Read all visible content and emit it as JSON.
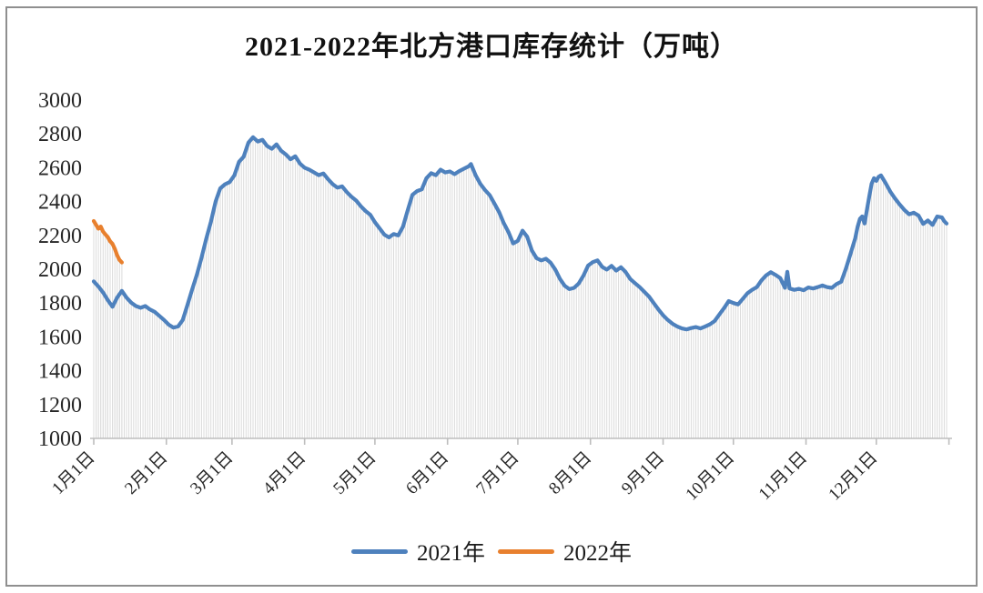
{
  "title": "2021-2022年北方港口库存统计（万吨）",
  "legend": {
    "items": [
      {
        "label": "2021年",
        "color": "#4e81bd"
      },
      {
        "label": "2022年",
        "color": "#e8802e"
      }
    ]
  },
  "colors": {
    "series_2021": "#4e81bd",
    "series_2022": "#e8802e",
    "drop_line": "#dbdbdb",
    "axis_line": "#bdbdbd",
    "tick_text": "#262626",
    "frame_border": "#8f8f8f"
  },
  "chart_data": {
    "type": "line",
    "title": "2021-2022年北方港口库存统计（万吨）",
    "xlabel": "",
    "ylabel": "",
    "y_axis": {
      "min": 1000,
      "max": 3000,
      "step": 200,
      "tick_labels": [
        "3000",
        "2800",
        "2600",
        "2400",
        "2200",
        "2000",
        "1800",
        "1600",
        "1400",
        "1200",
        "1000"
      ]
    },
    "x_axis": {
      "tick_labels": [
        "1月1日",
        "2月1日",
        "3月1日",
        "4月1日",
        "5月1日",
        "6月1日",
        "7月1日",
        "8月1日",
        "9月1日",
        "10月1日",
        "11月1日",
        "12月1日"
      ],
      "tick_days": [
        1,
        32,
        60,
        91,
        121,
        152,
        182,
        213,
        244,
        274,
        305,
        335
      ],
      "days_total": 365,
      "grid": false,
      "drop_lines": true
    },
    "legend_position": "bottom",
    "series": [
      {
        "name": "2021年",
        "color": "#4e81bd",
        "points": [
          [
            1,
            1928
          ],
          [
            3,
            1898
          ],
          [
            5,
            1862
          ],
          [
            7,
            1818
          ],
          [
            9,
            1778
          ],
          [
            11,
            1832
          ],
          [
            13,
            1872
          ],
          [
            15,
            1832
          ],
          [
            17,
            1802
          ],
          [
            19,
            1782
          ],
          [
            21,
            1772
          ],
          [
            23,
            1782
          ],
          [
            25,
            1762
          ],
          [
            27,
            1748
          ],
          [
            29,
            1724
          ],
          [
            31,
            1700
          ],
          [
            33,
            1672
          ],
          [
            35,
            1655
          ],
          [
            37,
            1662
          ],
          [
            39,
            1700
          ],
          [
            41,
            1790
          ],
          [
            43,
            1880
          ],
          [
            45,
            1968
          ],
          [
            47,
            2068
          ],
          [
            49,
            2180
          ],
          [
            51,
            2280
          ],
          [
            53,
            2400
          ],
          [
            55,
            2478
          ],
          [
            57,
            2502
          ],
          [
            59,
            2515
          ],
          [
            61,
            2555
          ],
          [
            63,
            2635
          ],
          [
            65,
            2665
          ],
          [
            67,
            2748
          ],
          [
            69,
            2780
          ],
          [
            71,
            2755
          ],
          [
            73,
            2765
          ],
          [
            75,
            2728
          ],
          [
            77,
            2712
          ],
          [
            79,
            2738
          ],
          [
            81,
            2700
          ],
          [
            83,
            2678
          ],
          [
            85,
            2650
          ],
          [
            87,
            2668
          ],
          [
            89,
            2625
          ],
          [
            91,
            2600
          ],
          [
            93,
            2588
          ],
          [
            95,
            2572
          ],
          [
            97,
            2556
          ],
          [
            99,
            2566
          ],
          [
            101,
            2532
          ],
          [
            103,
            2502
          ],
          [
            105,
            2482
          ],
          [
            107,
            2490
          ],
          [
            109,
            2456
          ],
          [
            111,
            2428
          ],
          [
            113,
            2406
          ],
          [
            115,
            2372
          ],
          [
            117,
            2344
          ],
          [
            119,
            2322
          ],
          [
            121,
            2278
          ],
          [
            123,
            2242
          ],
          [
            125,
            2205
          ],
          [
            127,
            2188
          ],
          [
            129,
            2208
          ],
          [
            131,
            2200
          ],
          [
            133,
            2252
          ],
          [
            135,
            2348
          ],
          [
            137,
            2440
          ],
          [
            139,
            2462
          ],
          [
            141,
            2472
          ],
          [
            143,
            2538
          ],
          [
            145,
            2568
          ],
          [
            147,
            2556
          ],
          [
            149,
            2588
          ],
          [
            151,
            2572
          ],
          [
            153,
            2578
          ],
          [
            155,
            2562
          ],
          [
            157,
            2580
          ],
          [
            159,
            2594
          ],
          [
            161,
            2608
          ],
          [
            162,
            2622
          ],
          [
            164,
            2555
          ],
          [
            166,
            2505
          ],
          [
            168,
            2468
          ],
          [
            170,
            2438
          ],
          [
            172,
            2388
          ],
          [
            174,
            2338
          ],
          [
            176,
            2272
          ],
          [
            178,
            2220
          ],
          [
            180,
            2152
          ],
          [
            182,
            2168
          ],
          [
            184,
            2228
          ],
          [
            186,
            2192
          ],
          [
            188,
            2110
          ],
          [
            190,
            2065
          ],
          [
            192,
            2052
          ],
          [
            194,
            2062
          ],
          [
            196,
            2038
          ],
          [
            198,
            1998
          ],
          [
            200,
            1942
          ],
          [
            202,
            1902
          ],
          [
            204,
            1882
          ],
          [
            206,
            1890
          ],
          [
            208,
            1916
          ],
          [
            210,
            1962
          ],
          [
            212,
            2022
          ],
          [
            214,
            2042
          ],
          [
            216,
            2052
          ],
          [
            218,
            2014
          ],
          [
            220,
            1998
          ],
          [
            222,
            2020
          ],
          [
            224,
            1992
          ],
          [
            226,
            2012
          ],
          [
            228,
            1984
          ],
          [
            230,
            1942
          ],
          [
            232,
            1918
          ],
          [
            234,
            1894
          ],
          [
            236,
            1866
          ],
          [
            238,
            1838
          ],
          [
            240,
            1800
          ],
          [
            242,
            1762
          ],
          [
            244,
            1728
          ],
          [
            246,
            1700
          ],
          [
            248,
            1678
          ],
          [
            250,
            1662
          ],
          [
            252,
            1650
          ],
          [
            254,
            1644
          ],
          [
            256,
            1652
          ],
          [
            258,
            1658
          ],
          [
            260,
            1650
          ],
          [
            262,
            1662
          ],
          [
            264,
            1674
          ],
          [
            266,
            1694
          ],
          [
            268,
            1732
          ],
          [
            270,
            1770
          ],
          [
            272,
            1812
          ],
          [
            274,
            1800
          ],
          [
            276,
            1792
          ],
          [
            278,
            1824
          ],
          [
            280,
            1858
          ],
          [
            282,
            1878
          ],
          [
            284,
            1894
          ],
          [
            286,
            1934
          ],
          [
            288,
            1964
          ],
          [
            290,
            1982
          ],
          [
            292,
            1966
          ],
          [
            294,
            1948
          ],
          [
            296,
            1890
          ],
          [
            297,
            1985
          ],
          [
            298,
            1886
          ],
          [
            300,
            1878
          ],
          [
            302,
            1884
          ],
          [
            304,
            1876
          ],
          [
            306,
            1892
          ],
          [
            308,
            1886
          ],
          [
            310,
            1894
          ],
          [
            312,
            1904
          ],
          [
            314,
            1894
          ],
          [
            316,
            1890
          ],
          [
            318,
            1912
          ],
          [
            320,
            1926
          ],
          [
            322,
            2002
          ],
          [
            324,
            2092
          ],
          [
            326,
            2182
          ],
          [
            327,
            2250
          ],
          [
            328,
            2298
          ],
          [
            329,
            2312
          ],
          [
            330,
            2270
          ],
          [
            331,
            2352
          ],
          [
            332,
            2432
          ],
          [
            333,
            2505
          ],
          [
            334,
            2538
          ],
          [
            335,
            2522
          ],
          [
            336,
            2546
          ],
          [
            337,
            2555
          ],
          [
            339,
            2508
          ],
          [
            341,
            2458
          ],
          [
            343,
            2418
          ],
          [
            345,
            2382
          ],
          [
            347,
            2350
          ],
          [
            349,
            2325
          ],
          [
            351,
            2334
          ],
          [
            353,
            2318
          ],
          [
            355,
            2268
          ],
          [
            357,
            2288
          ],
          [
            359,
            2262
          ],
          [
            361,
            2312
          ],
          [
            363,
            2306
          ],
          [
            364,
            2284
          ],
          [
            365,
            2270
          ]
        ]
      },
      {
        "name": "2022年",
        "color": "#e8802e",
        "points": [
          [
            1,
            2285
          ],
          [
            2,
            2262
          ],
          [
            3,
            2240
          ],
          [
            4,
            2252
          ],
          [
            5,
            2222
          ],
          [
            6,
            2205
          ],
          [
            7,
            2190
          ],
          [
            8,
            2165
          ],
          [
            9,
            2150
          ],
          [
            10,
            2120
          ],
          [
            11,
            2082
          ],
          [
            12,
            2055
          ],
          [
            13,
            2040
          ]
        ]
      }
    ]
  }
}
